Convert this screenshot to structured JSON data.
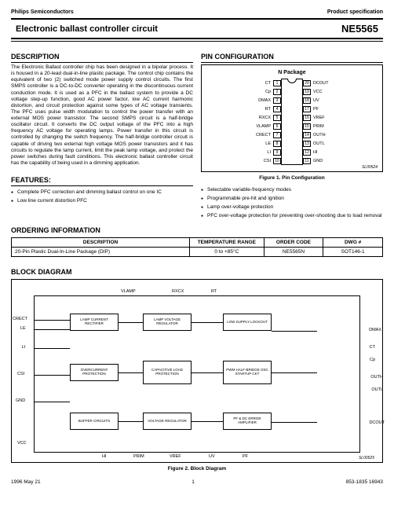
{
  "header": {
    "company": "Philips Semiconductors",
    "spec": "Product specification"
  },
  "title": {
    "main": "Electronic ballast controller circuit",
    "part": "NE5565"
  },
  "description": {
    "heading": "DESCRIPTION",
    "text": "The Electronic Ballast controller chip has been designed in a bipolar process. It is housed in a 20-lead dual-in-line plastic package. The control chip contains the equivalent of two (2) switched mode power supply control circuits. The first SMPS controller is a DC-to-DC converter operating in the discontinuous current conduction mode. It is used as a PFC in the ballast system to provide a DC voltage step-up function, good AC power factor, low AC current harmonic distortion, and circuit protection against some types of AC voltage transients. The PFC uses pulse width modulation to control the power transfer with an external MOS power transistor. The second SMPS circuit is a half-bridge oscillator circuit. It converts the DC output voltage of the PFC into a high frequency AC voltage for operating lamps. Power transfer in this circuit is controlled by changing the switch frequency. The half-bridge controller circuit is capable of driving two external high voltage MOS power transistors and it has circuits to regulate the lamp current, limit the peak lamp voltage, and protect the power switches during fault conditions. This electronic ballast controller circuit has the capability of being used in a dimming application."
  },
  "features": {
    "heading": "FEATURES:",
    "items": [
      "Complete PFC correction and dimming ballast control on one IC",
      "Low line current distortion PFC"
    ]
  },
  "pinConfig": {
    "heading": "PIN CONFIGURATION",
    "package": "N Package",
    "figure": "Figure 1. Pin Configuration",
    "sl": "SL00524",
    "left": [
      {
        "n": "1",
        "lbl": "CT"
      },
      {
        "n": "2",
        "lbl": "Cp"
      },
      {
        "n": "3",
        "lbl": "DMAX"
      },
      {
        "n": "4",
        "lbl": "RT"
      },
      {
        "n": "5",
        "lbl": "RXCX"
      },
      {
        "n": "6",
        "lbl": "VLAMP"
      },
      {
        "n": "7",
        "lbl": "CRECT"
      },
      {
        "n": "8",
        "lbl": "LE"
      },
      {
        "n": "9",
        "lbl": "LI"
      },
      {
        "n": "10",
        "lbl": "CSI"
      }
    ],
    "right": [
      {
        "n": "20",
        "lbl": "DCOUT"
      },
      {
        "n": "19",
        "lbl": "VCC"
      },
      {
        "n": "18",
        "lbl": "UV"
      },
      {
        "n": "17",
        "lbl": "PF"
      },
      {
        "n": "16",
        "lbl": "VREF"
      },
      {
        "n": "15",
        "lbl": "PRIM"
      },
      {
        "n": "14",
        "lbl": "OUTH"
      },
      {
        "n": "13",
        "lbl": "OUTL"
      },
      {
        "n": "12",
        "lbl": "HI"
      },
      {
        "n": "11",
        "lbl": "GND"
      }
    ],
    "bullets": [
      "Selectable variable-frequency modes",
      "Programmable pre-hit and ignition",
      "Lamp over-voltage protection",
      "PFC over-voltage protection for preventing over-shooting due to load removal"
    ]
  },
  "ordering": {
    "heading": "ORDERING INFORMATION",
    "cols": [
      "DESCRIPTION",
      "TEMPERATURE RANGE",
      "ORDER CODE",
      "DWG #"
    ],
    "row": [
      "20-Pin Plastic Dual-In-Line Package (DIP)",
      "0 to +85°C",
      "NE5565N",
      "SOT146-1"
    ]
  },
  "block": {
    "heading": "BLOCK DIAGRAM",
    "figure": "Figure 2. Block Diagram",
    "sl": "SL00525",
    "topLabels": [
      "VLAMP",
      "RXCX",
      "RT"
    ],
    "leftPorts": [
      "CRECT",
      "LE",
      "LI",
      "CSI",
      "GND",
      "VCC"
    ],
    "rightPorts": [
      "DMAX",
      "CT",
      "Cp",
      "OUTH",
      "OUTL",
      "DCOUT"
    ],
    "bottomPorts": [
      "HI",
      "PRIM",
      "VREF",
      "UV",
      "PF"
    ],
    "boxes": [
      {
        "t": "LAMP CURRENT RECTIFIER"
      },
      {
        "t": "LAMP VOLTAGE REGULATOR"
      },
      {
        "t": "LOW SUPPLY LOCKOUT"
      },
      {
        "t": "OVERCURRENT PROTECTION"
      },
      {
        "t": "CAPACITIVE LOAD PROTECTION"
      },
      {
        "t": "PWM HALF-BRIDGE OSC STARTUP CKT"
      },
      {
        "t": "BUFFER CIRCUITS"
      },
      {
        "t": "VOLTAGE REGULATOR"
      },
      {
        "t": "PF & DC ERROR AMPLIFIER"
      }
    ]
  },
  "footer": {
    "date": "1996 May 21",
    "page": "1",
    "code": "853-1835 16943"
  }
}
